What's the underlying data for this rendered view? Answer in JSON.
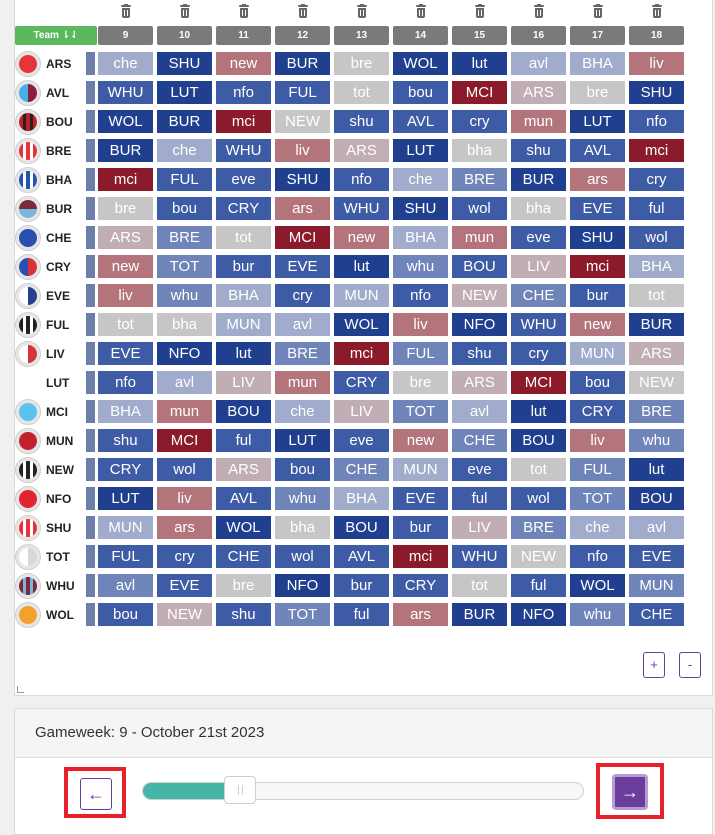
{
  "grid": {
    "team_header_label": "Team ⇂⇃",
    "gameweeks": [
      "9",
      "10",
      "11",
      "12",
      "13",
      "14",
      "15",
      "16",
      "17",
      "18"
    ],
    "teams": [
      {
        "abbr": "ARS",
        "crest": {
          "primary": "#e8333b",
          "secondary": "#ffffff",
          "style": "solid"
        },
        "fixtures": [
          {
            "t": "che",
            "c": "#a1accc"
          },
          {
            "t": "SHU",
            "c": "#203f8f"
          },
          {
            "t": "new",
            "c": "#b3747c"
          },
          {
            "t": "BUR",
            "c": "#203f8f"
          },
          {
            "t": "bre",
            "c": "#c6c6c6"
          },
          {
            "t": "WOL",
            "c": "#203f8f"
          },
          {
            "t": "lut",
            "c": "#203f8f"
          },
          {
            "t": "avl",
            "c": "#a1accc"
          },
          {
            "t": "BHA",
            "c": "#a1accc"
          },
          {
            "t": "liv",
            "c": "#b3747c"
          }
        ]
      },
      {
        "abbr": "AVL",
        "crest": {
          "primary": "#8a1e3b",
          "secondary": "#4ab0e8",
          "style": "split"
        },
        "fixtures": [
          {
            "t": "WHU",
            "c": "#3e5ca5"
          },
          {
            "t": "LUT",
            "c": "#203f8f"
          },
          {
            "t": "nfo",
            "c": "#3e5ca5"
          },
          {
            "t": "FUL",
            "c": "#3e5ca5"
          },
          {
            "t": "tot",
            "c": "#c6c6c6"
          },
          {
            "t": "bou",
            "c": "#3e5ca5"
          },
          {
            "t": "MCI",
            "c": "#8b1a2b"
          },
          {
            "t": "ARS",
            "c": "#c1aeb4"
          },
          {
            "t": "bre",
            "c": "#c6c6c6"
          },
          {
            "t": "SHU",
            "c": "#203f8f"
          }
        ]
      },
      {
        "abbr": "BOU",
        "crest": {
          "primary": "#c01f2a",
          "secondary": "#222222",
          "style": "stripes"
        },
        "fixtures": [
          {
            "t": "WOL",
            "c": "#203f8f"
          },
          {
            "t": "BUR",
            "c": "#203f8f"
          },
          {
            "t": "mci",
            "c": "#8b1a2b"
          },
          {
            "t": "NEW",
            "c": "#c6c6c6"
          },
          {
            "t": "shu",
            "c": "#3e5ca5"
          },
          {
            "t": "AVL",
            "c": "#3e5ca5"
          },
          {
            "t": "cry",
            "c": "#3e5ca5"
          },
          {
            "t": "mun",
            "c": "#b3747c"
          },
          {
            "t": "LUT",
            "c": "#203f8f"
          },
          {
            "t": "nfo",
            "c": "#3e5ca5"
          }
        ]
      },
      {
        "abbr": "BRE",
        "crest": {
          "primary": "#e8333b",
          "secondary": "#ffffff",
          "style": "stripes"
        },
        "fixtures": [
          {
            "t": "BUR",
            "c": "#203f8f"
          },
          {
            "t": "che",
            "c": "#a1accc"
          },
          {
            "t": "WHU",
            "c": "#3e5ca5"
          },
          {
            "t": "liv",
            "c": "#b3747c"
          },
          {
            "t": "ARS",
            "c": "#c1aeb4"
          },
          {
            "t": "LUT",
            "c": "#203f8f"
          },
          {
            "t": "bha",
            "c": "#c6c6c6"
          },
          {
            "t": "shu",
            "c": "#3e5ca5"
          },
          {
            "t": "AVL",
            "c": "#3e5ca5"
          },
          {
            "t": "mci",
            "c": "#8b1a2b"
          }
        ]
      },
      {
        "abbr": "BHA",
        "crest": {
          "primary": "#1f56b3",
          "secondary": "#ffffff",
          "style": "stripes"
        },
        "fixtures": [
          {
            "t": "mci",
            "c": "#8b1a2b"
          },
          {
            "t": "FUL",
            "c": "#3e5ca5"
          },
          {
            "t": "eve",
            "c": "#3e5ca5"
          },
          {
            "t": "SHU",
            "c": "#203f8f"
          },
          {
            "t": "nfo",
            "c": "#3e5ca5"
          },
          {
            "t": "che",
            "c": "#a1accc"
          },
          {
            "t": "BRE",
            "c": "#6f84b8"
          },
          {
            "t": "BUR",
            "c": "#203f8f"
          },
          {
            "t": "ars",
            "c": "#b3747c"
          },
          {
            "t": "cry",
            "c": "#3e5ca5"
          }
        ]
      },
      {
        "abbr": "BUR",
        "crest": {
          "primary": "#7a2a3c",
          "secondary": "#7ab8d9",
          "style": "split-h"
        },
        "fixtures": [
          {
            "t": "bre",
            "c": "#c6c6c6"
          },
          {
            "t": "bou",
            "c": "#3e5ca5"
          },
          {
            "t": "CRY",
            "c": "#3e5ca5"
          },
          {
            "t": "ars",
            "c": "#b3747c"
          },
          {
            "t": "WHU",
            "c": "#3e5ca5"
          },
          {
            "t": "SHU",
            "c": "#203f8f"
          },
          {
            "t": "wol",
            "c": "#3e5ca5"
          },
          {
            "t": "bha",
            "c": "#c6c6c6"
          },
          {
            "t": "EVE",
            "c": "#3e5ca5"
          },
          {
            "t": "ful",
            "c": "#3e5ca5"
          }
        ]
      },
      {
        "abbr": "CHE",
        "crest": {
          "primary": "#2a4fb0",
          "secondary": "#ffffff",
          "style": "solid"
        },
        "fixtures": [
          {
            "t": "ARS",
            "c": "#c1aeb4"
          },
          {
            "t": "BRE",
            "c": "#6f84b8"
          },
          {
            "t": "tot",
            "c": "#c6c6c6"
          },
          {
            "t": "MCI",
            "c": "#8b1a2b"
          },
          {
            "t": "new",
            "c": "#b3747c"
          },
          {
            "t": "BHA",
            "c": "#a1accc"
          },
          {
            "t": "mun",
            "c": "#b3747c"
          },
          {
            "t": "eve",
            "c": "#3e5ca5"
          },
          {
            "t": "SHU",
            "c": "#203f8f"
          },
          {
            "t": "wol",
            "c": "#3e5ca5"
          }
        ]
      },
      {
        "abbr": "CRY",
        "crest": {
          "primary": "#d8323a",
          "secondary": "#2a4fb0",
          "style": "split"
        },
        "fixtures": [
          {
            "t": "new",
            "c": "#b3747c"
          },
          {
            "t": "TOT",
            "c": "#6f84b8"
          },
          {
            "t": "bur",
            "c": "#3e5ca5"
          },
          {
            "t": "EVE",
            "c": "#3e5ca5"
          },
          {
            "t": "lut",
            "c": "#203f8f"
          },
          {
            "t": "whu",
            "c": "#6f84b8"
          },
          {
            "t": "BOU",
            "c": "#3e5ca5"
          },
          {
            "t": "LIV",
            "c": "#c1aeb4"
          },
          {
            "t": "mci",
            "c": "#8b1a2b"
          },
          {
            "t": "BHA",
            "c": "#a1accc"
          }
        ]
      },
      {
        "abbr": "EVE",
        "crest": {
          "primary": "#27408b",
          "secondary": "#ffffff",
          "style": "split"
        },
        "fixtures": [
          {
            "t": "liv",
            "c": "#b3747c"
          },
          {
            "t": "whu",
            "c": "#6f84b8"
          },
          {
            "t": "BHA",
            "c": "#a1accc"
          },
          {
            "t": "cry",
            "c": "#3e5ca5"
          },
          {
            "t": "MUN",
            "c": "#a1accc"
          },
          {
            "t": "nfo",
            "c": "#3e5ca5"
          },
          {
            "t": "NEW",
            "c": "#c1aeb4"
          },
          {
            "t": "CHE",
            "c": "#6f84b8"
          },
          {
            "t": "bur",
            "c": "#3e5ca5"
          },
          {
            "t": "tot",
            "c": "#c6c6c6"
          }
        ]
      },
      {
        "abbr": "FUL",
        "crest": {
          "primary": "#222222",
          "secondary": "#ffffff",
          "style": "stripes"
        },
        "fixtures": [
          {
            "t": "tot",
            "c": "#c6c6c6"
          },
          {
            "t": "bha",
            "c": "#c6c6c6"
          },
          {
            "t": "MUN",
            "c": "#a1accc"
          },
          {
            "t": "avl",
            "c": "#a1accc"
          },
          {
            "t": "WOL",
            "c": "#203f8f"
          },
          {
            "t": "liv",
            "c": "#b3747c"
          },
          {
            "t": "NFO",
            "c": "#203f8f"
          },
          {
            "t": "WHU",
            "c": "#3e5ca5"
          },
          {
            "t": "new",
            "c": "#b3747c"
          },
          {
            "t": "BUR",
            "c": "#203f8f"
          }
        ]
      },
      {
        "abbr": "LIV",
        "crest": {
          "primary": "#d8323a",
          "secondary": "#ffffff",
          "style": "split"
        },
        "fixtures": [
          {
            "t": "EVE",
            "c": "#3e5ca5"
          },
          {
            "t": "NFO",
            "c": "#203f8f"
          },
          {
            "t": "lut",
            "c": "#203f8f"
          },
          {
            "t": "BRE",
            "c": "#6f84b8"
          },
          {
            "t": "mci",
            "c": "#8b1a2b"
          },
          {
            "t": "FUL",
            "c": "#6f84b8"
          },
          {
            "t": "shu",
            "c": "#3e5ca5"
          },
          {
            "t": "cry",
            "c": "#3e5ca5"
          },
          {
            "t": "MUN",
            "c": "#a1accc"
          },
          {
            "t": "ARS",
            "c": "#c1aeb4"
          }
        ]
      },
      {
        "abbr": "LUT",
        "crest": {
          "primary": "#ffffff",
          "secondary": "#ffffff",
          "style": "none"
        },
        "fixtures": [
          {
            "t": "nfo",
            "c": "#3e5ca5"
          },
          {
            "t": "avl",
            "c": "#a1accc"
          },
          {
            "t": "LIV",
            "c": "#c1aeb4"
          },
          {
            "t": "mun",
            "c": "#b3747c"
          },
          {
            "t": "CRY",
            "c": "#3e5ca5"
          },
          {
            "t": "bre",
            "c": "#c6c6c6"
          },
          {
            "t": "ARS",
            "c": "#c1aeb4"
          },
          {
            "t": "MCI",
            "c": "#8b1a2b"
          },
          {
            "t": "bou",
            "c": "#3e5ca5"
          },
          {
            "t": "NEW",
            "c": "#c6c6c6"
          }
        ]
      },
      {
        "abbr": "MCI",
        "crest": {
          "primary": "#5ac2ec",
          "secondary": "#ffffff",
          "style": "solid"
        },
        "fixtures": [
          {
            "t": "BHA",
            "c": "#a1accc"
          },
          {
            "t": "mun",
            "c": "#b3747c"
          },
          {
            "t": "BOU",
            "c": "#203f8f"
          },
          {
            "t": "che",
            "c": "#a1accc"
          },
          {
            "t": "LIV",
            "c": "#c1aeb4"
          },
          {
            "t": "TOT",
            "c": "#6f84b8"
          },
          {
            "t": "avl",
            "c": "#a1accc"
          },
          {
            "t": "lut",
            "c": "#203f8f"
          },
          {
            "t": "CRY",
            "c": "#3e5ca5"
          },
          {
            "t": "BRE",
            "c": "#6f84b8"
          }
        ]
      },
      {
        "abbr": "MUN",
        "crest": {
          "primary": "#c0232e",
          "secondary": "#ffffff",
          "style": "solid"
        },
        "fixtures": [
          {
            "t": "shu",
            "c": "#3e5ca5"
          },
          {
            "t": "MCI",
            "c": "#8b1a2b"
          },
          {
            "t": "ful",
            "c": "#3e5ca5"
          },
          {
            "t": "LUT",
            "c": "#203f8f"
          },
          {
            "t": "eve",
            "c": "#3e5ca5"
          },
          {
            "t": "new",
            "c": "#b3747c"
          },
          {
            "t": "CHE",
            "c": "#6f84b8"
          },
          {
            "t": "BOU",
            "c": "#203f8f"
          },
          {
            "t": "liv",
            "c": "#b3747c"
          },
          {
            "t": "whu",
            "c": "#6f84b8"
          }
        ]
      },
      {
        "abbr": "NEW",
        "crest": {
          "primary": "#222222",
          "secondary": "#ffffff",
          "style": "stripes"
        },
        "fixtures": [
          {
            "t": "CRY",
            "c": "#3e5ca5"
          },
          {
            "t": "wol",
            "c": "#3e5ca5"
          },
          {
            "t": "ARS",
            "c": "#c1aeb4"
          },
          {
            "t": "bou",
            "c": "#3e5ca5"
          },
          {
            "t": "CHE",
            "c": "#6f84b8"
          },
          {
            "t": "MUN",
            "c": "#a1accc"
          },
          {
            "t": "eve",
            "c": "#3e5ca5"
          },
          {
            "t": "tot",
            "c": "#c6c6c6"
          },
          {
            "t": "FUL",
            "c": "#6f84b8"
          },
          {
            "t": "lut",
            "c": "#203f8f"
          }
        ]
      },
      {
        "abbr": "NFO",
        "crest": {
          "primary": "#e0252e",
          "secondary": "#ffffff",
          "style": "solid"
        },
        "fixtures": [
          {
            "t": "LUT",
            "c": "#203f8f"
          },
          {
            "t": "liv",
            "c": "#b3747c"
          },
          {
            "t": "AVL",
            "c": "#3e5ca5"
          },
          {
            "t": "whu",
            "c": "#6f84b8"
          },
          {
            "t": "BHA",
            "c": "#a1accc"
          },
          {
            "t": "EVE",
            "c": "#3e5ca5"
          },
          {
            "t": "ful",
            "c": "#3e5ca5"
          },
          {
            "t": "wol",
            "c": "#3e5ca5"
          },
          {
            "t": "TOT",
            "c": "#6f84b8"
          },
          {
            "t": "BOU",
            "c": "#203f8f"
          }
        ]
      },
      {
        "abbr": "SHU",
        "crest": {
          "primary": "#e8333b",
          "secondary": "#ffffff",
          "style": "stripes"
        },
        "fixtures": [
          {
            "t": "MUN",
            "c": "#a1accc"
          },
          {
            "t": "ars",
            "c": "#b3747c"
          },
          {
            "t": "WOL",
            "c": "#203f8f"
          },
          {
            "t": "bha",
            "c": "#c6c6c6"
          },
          {
            "t": "BOU",
            "c": "#203f8f"
          },
          {
            "t": "bur",
            "c": "#3e5ca5"
          },
          {
            "t": "LIV",
            "c": "#c1aeb4"
          },
          {
            "t": "BRE",
            "c": "#6f84b8"
          },
          {
            "t": "che",
            "c": "#a1accc"
          },
          {
            "t": "avl",
            "c": "#a1accc"
          }
        ]
      },
      {
        "abbr": "TOT",
        "crest": {
          "primary": "#d8d8d8",
          "secondary": "#ffffff",
          "style": "split"
        },
        "fixtures": [
          {
            "t": "FUL",
            "c": "#3e5ca5"
          },
          {
            "t": "cry",
            "c": "#3e5ca5"
          },
          {
            "t": "CHE",
            "c": "#3e5ca5"
          },
          {
            "t": "wol",
            "c": "#3e5ca5"
          },
          {
            "t": "AVL",
            "c": "#3e5ca5"
          },
          {
            "t": "mci",
            "c": "#8b1a2b"
          },
          {
            "t": "WHU",
            "c": "#3e5ca5"
          },
          {
            "t": "NEW",
            "c": "#c6c6c6"
          },
          {
            "t": "nfo",
            "c": "#3e5ca5"
          },
          {
            "t": "EVE",
            "c": "#3e5ca5"
          }
        ]
      },
      {
        "abbr": "WHU",
        "crest": {
          "primary": "#7a2a3c",
          "secondary": "#7ab8d9",
          "style": "stripes"
        },
        "fixtures": [
          {
            "t": "avl",
            "c": "#6f84b8"
          },
          {
            "t": "EVE",
            "c": "#3e5ca5"
          },
          {
            "t": "bre",
            "c": "#c6c6c6"
          },
          {
            "t": "NFO",
            "c": "#203f8f"
          },
          {
            "t": "bur",
            "c": "#3e5ca5"
          },
          {
            "t": "CRY",
            "c": "#3e5ca5"
          },
          {
            "t": "tot",
            "c": "#c6c6c6"
          },
          {
            "t": "ful",
            "c": "#3e5ca5"
          },
          {
            "t": "WOL",
            "c": "#203f8f"
          },
          {
            "t": "MUN",
            "c": "#6f84b8"
          }
        ]
      },
      {
        "abbr": "WOL",
        "crest": {
          "primary": "#f1a22c",
          "secondary": "#ffffff",
          "style": "solid"
        },
        "fixtures": [
          {
            "t": "bou",
            "c": "#3e5ca5"
          },
          {
            "t": "NEW",
            "c": "#c1aeb4"
          },
          {
            "t": "shu",
            "c": "#3e5ca5"
          },
          {
            "t": "TOT",
            "c": "#6f84b8"
          },
          {
            "t": "ful",
            "c": "#3e5ca5"
          },
          {
            "t": "ars",
            "c": "#b3747c"
          },
          {
            "t": "BUR",
            "c": "#203f8f"
          },
          {
            "t": "NFO",
            "c": "#203f8f"
          },
          {
            "t": "whu",
            "c": "#6f84b8"
          },
          {
            "t": "CHE",
            "c": "#3e5ca5"
          }
        ]
      }
    ]
  },
  "zoom": {
    "plus_label": "+",
    "minus_label": "-"
  },
  "gameweek_panel": {
    "title": "Gameweek: 9 - October 21st 2023",
    "prev_label": "←",
    "next_label": "→",
    "slider_progress": 0.2
  }
}
